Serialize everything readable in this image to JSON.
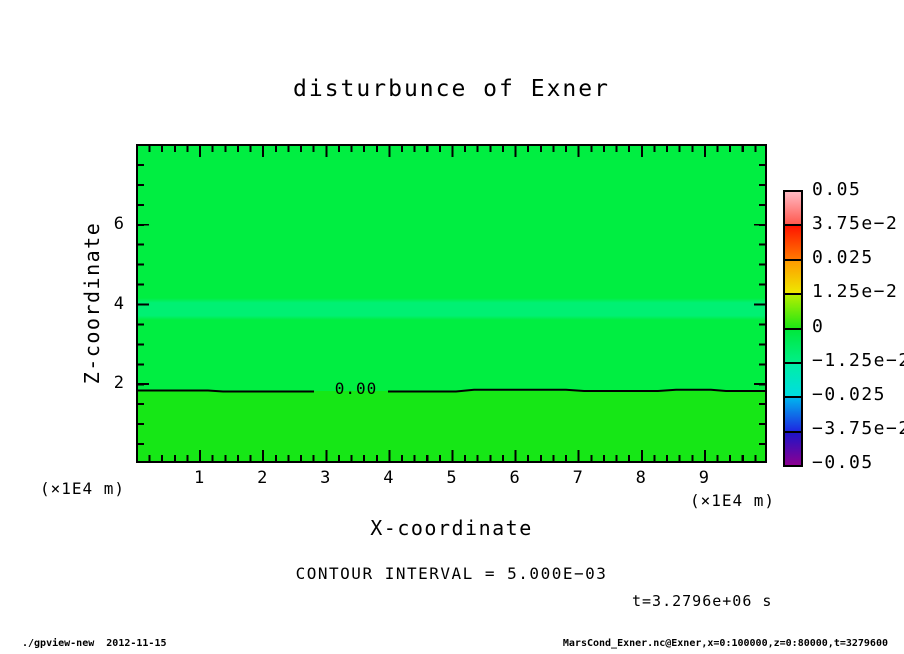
{
  "title": "disturbunce of Exner",
  "plot": {
    "x_axis": {
      "label": "X-coordinate",
      "unit": "(×1E4 m)",
      "ticks": [
        {
          "value": 1,
          "label": "1"
        },
        {
          "value": 2,
          "label": "2"
        },
        {
          "value": 3,
          "label": "3"
        },
        {
          "value": 4,
          "label": "4"
        },
        {
          "value": 5,
          "label": "5"
        },
        {
          "value": 6,
          "label": "6"
        },
        {
          "value": 7,
          "label": "7"
        },
        {
          "value": 8,
          "label": "8"
        },
        {
          "value": 9,
          "label": "9"
        }
      ]
    },
    "y_axis": {
      "label": "Z-coordinate",
      "unit": "(×1E4 m)",
      "ticks": [
        {
          "value": 2,
          "label": "2"
        },
        {
          "value": 4,
          "label": "4"
        },
        {
          "value": 6,
          "label": "6"
        }
      ]
    },
    "contour_label": "0.00"
  },
  "colorbar": {
    "labels": [
      "0.05",
      "3.75e−2",
      "0.025",
      "1.25e−2",
      "0",
      "−1.25e−2",
      "−0.025",
      "−3.75e−2",
      "−0.05"
    ],
    "segments": [
      {
        "from": "#ffb9c3",
        "to": "#ff5a50"
      },
      {
        "from": "#ff1400",
        "to": "#ff7800"
      },
      {
        "from": "#ff9b00",
        "to": "#eee800"
      },
      {
        "from": "#b4ef00",
        "to": "#1ee614"
      },
      {
        "from": "#00e83c",
        "to": "#00ef87"
      },
      {
        "from": "#00efa5",
        "to": "#00dce1"
      },
      {
        "from": "#00b4ef",
        "to": "#1e28e1"
      },
      {
        "from": "#1e14c8",
        "to": "#8c0091"
      }
    ]
  },
  "annotations": {
    "contour_interval": "CONTOUR INTERVAL = 5.000E−03",
    "time": "t=3.2796e+06 s"
  },
  "footer": {
    "left": "./gpview-new  2012-11-15",
    "right": "MarsCond_Exner.nc@Exner,x=0:100000,z=0:80000,t=3279600"
  },
  "colors": {
    "field": "#00ee41",
    "band": "#00f073",
    "below_contour": "#16e716",
    "frame": "#000000"
  },
  "chart_data": {
    "type": "heatmap",
    "title": "disturbunce of Exner",
    "xlabel": "X-coordinate",
    "ylabel": "Z-coordinate",
    "x_unit": "×1E4 m",
    "y_unit": "×1E4 m",
    "x_range": [
      0,
      10
    ],
    "y_range": [
      0,
      8
    ],
    "x_ticks": [
      1,
      2,
      3,
      4,
      5,
      6,
      7,
      8,
      9
    ],
    "y_ticks": [
      2,
      4,
      6
    ],
    "colorbar_levels": [
      0.05,
      0.0375,
      0.025,
      0.0125,
      0,
      -0.0125,
      -0.025,
      -0.0375,
      -0.05
    ],
    "contour_interval": 0.005,
    "contours": [
      {
        "level": 0.0,
        "label": "0.00",
        "z_position_x1e4m": 1.85,
        "shape": "nearly horizontal line across full x range with slight wiggles"
      }
    ],
    "field_description": "Exner disturbance field nearly uniform around 0: slightly positive (yellow-green tint) below the 0.00 contour at z≈1.85, slightly negative (green) above it, with a lighter mint band (more negative, toward −1.25e−2 bin) around z≈3.7–4.2",
    "time_annotation": "t=3.2796e+06 s",
    "legend_position": "right colorbar",
    "grid": false
  }
}
